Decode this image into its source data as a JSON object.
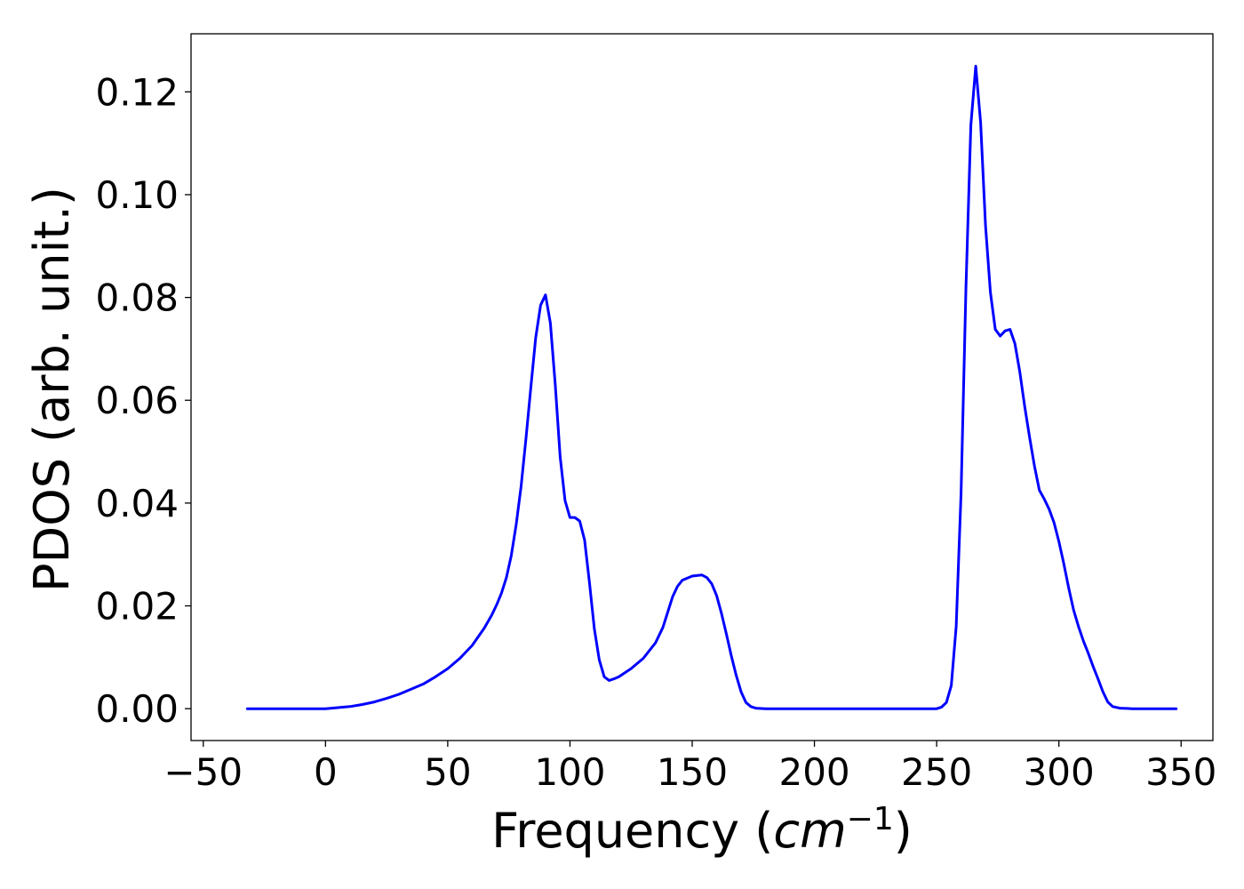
{
  "chart_data": {
    "type": "line",
    "title": "",
    "xlabel_main": "Frequency (",
    "xlabel_unit": "cm",
    "xlabel_exp": "−1",
    "xlabel_end": ")",
    "ylabel": "PDOS (arb. unit.)",
    "xlim": [
      -55,
      363
    ],
    "ylim": [
      -0.0062,
      0.1313
    ],
    "xticks": [
      -50,
      0,
      50,
      100,
      150,
      200,
      250,
      300,
      350
    ],
    "xtick_labels": [
      "−50",
      "0",
      "50",
      "100",
      "150",
      "200",
      "250",
      "300",
      "350"
    ],
    "yticks": [
      0.0,
      0.02,
      0.04,
      0.06,
      0.08,
      0.1,
      0.12
    ],
    "ytick_labels": [
      "0.00",
      "0.02",
      "0.04",
      "0.06",
      "0.08",
      "0.10",
      "0.12"
    ],
    "grid": false,
    "series": [
      {
        "color": "#0000ff",
        "x": [
          -32,
          -20,
          -10,
          0,
          5,
          10,
          15,
          20,
          25,
          30,
          35,
          40,
          45,
          50,
          55,
          60,
          65,
          68,
          70,
          72,
          74,
          76,
          78,
          80,
          82,
          84,
          86,
          88,
          90,
          92,
          94,
          96,
          98,
          100,
          102,
          104,
          106,
          108,
          110,
          112,
          114,
          116,
          118,
          120,
          125,
          130,
          135,
          138,
          140,
          142,
          144,
          146,
          150,
          154,
          156,
          158,
          160,
          162,
          164,
          166,
          168,
          170,
          172,
          174,
          176,
          180,
          200,
          220,
          240,
          250,
          252,
          254,
          256,
          258,
          260,
          262,
          264,
          266,
          268,
          270,
          272,
          274,
          276,
          278,
          280,
          282,
          284,
          286,
          288,
          290,
          292,
          294,
          296,
          298,
          300,
          302,
          304,
          306,
          308,
          310,
          312,
          314,
          316,
          318,
          320,
          322,
          325,
          330,
          340,
          348
        ],
        "y": [
          0.0,
          0.0,
          0.0,
          0.0,
          0.0002,
          0.0004,
          0.0008,
          0.0013,
          0.002,
          0.0028,
          0.0038,
          0.0048,
          0.0062,
          0.0078,
          0.0098,
          0.0123,
          0.0157,
          0.0182,
          0.0202,
          0.0225,
          0.0255,
          0.0298,
          0.0358,
          0.0432,
          0.0525,
          0.0625,
          0.0722,
          0.0785,
          0.0805,
          0.075,
          0.063,
          0.049,
          0.0405,
          0.0372,
          0.0372,
          0.0365,
          0.0328,
          0.0245,
          0.0155,
          0.0095,
          0.0062,
          0.0055,
          0.0058,
          0.0062,
          0.0078,
          0.0098,
          0.0128,
          0.0158,
          0.0188,
          0.0218,
          0.0238,
          0.025,
          0.0258,
          0.026,
          0.0255,
          0.0243,
          0.022,
          0.0185,
          0.0145,
          0.0103,
          0.0065,
          0.0033,
          0.0012,
          0.0004,
          0.0001,
          0.0,
          0.0,
          0.0,
          0.0,
          0.0,
          0.0003,
          0.0012,
          0.0045,
          0.016,
          0.042,
          0.082,
          0.1135,
          0.125,
          0.114,
          0.094,
          0.081,
          0.0738,
          0.0725,
          0.0735,
          0.0738,
          0.071,
          0.0655,
          0.0588,
          0.0528,
          0.0472,
          0.0425,
          0.0408,
          0.0388,
          0.0362,
          0.0325,
          0.0282,
          0.0235,
          0.0192,
          0.016,
          0.0132,
          0.0108,
          0.0082,
          0.0058,
          0.0033,
          0.0013,
          0.0004,
          0.0001,
          0.0,
          0.0,
          0.0
        ]
      }
    ]
  }
}
